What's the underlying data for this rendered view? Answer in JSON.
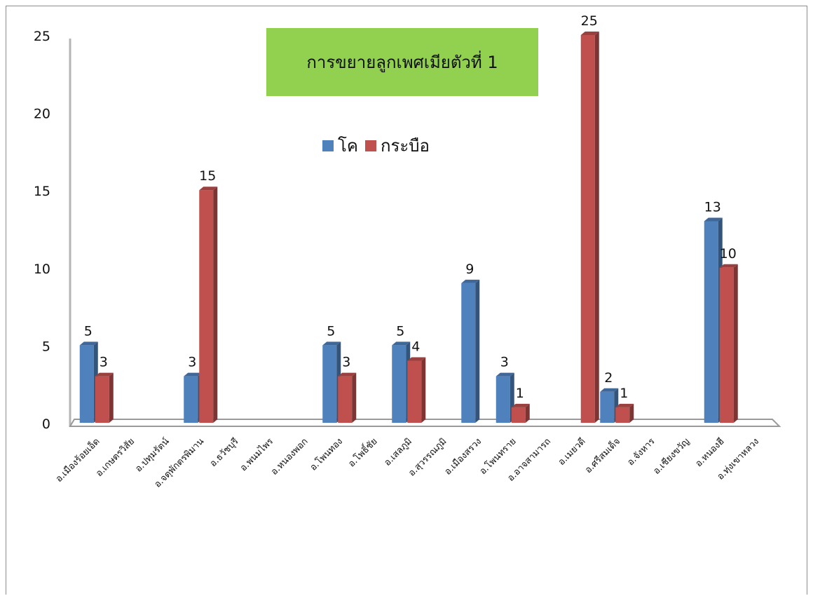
{
  "chart_data": {
    "type": "bar",
    "title": "การขยายลูกเพศเมียตัวที่ 1",
    "categories": [
      "อ.เมืองร้อยเอ็ด",
      "อ.เกษตรวิสัย",
      "อ.ปทุมรัตน์",
      "อ.จตุพักตรพิมาน",
      "อ.ธวัชบุรี",
      "อ.พนมไพร",
      "อ.หนองพอก",
      "อ.โพนทอง",
      "อ.โพธิ์ชัย",
      "อ.เสลภูมิ",
      "อ.สุวรรณภูมิ",
      "อ.เมืองสรวง",
      "อ.โพนทราย",
      "อ.อาจสามารถ",
      "อ.เมยวดี",
      "อ.ศรีสมเด็จ",
      "อ.จังหาร",
      "อ.เชียงขวัญ",
      "อ.หนองฮี",
      "อ.ทุ่งเขาหลวง"
    ],
    "series": [
      {
        "name": "โค",
        "color": "#4f81bd",
        "values": [
          5,
          null,
          null,
          3,
          null,
          null,
          null,
          5,
          null,
          5,
          null,
          9,
          3,
          null,
          null,
          2,
          null,
          null,
          13,
          null
        ]
      },
      {
        "name": "กระบือ",
        "color": "#c0504d",
        "values": [
          3,
          null,
          null,
          15,
          null,
          null,
          null,
          3,
          null,
          4,
          null,
          null,
          1,
          null,
          25,
          1,
          null,
          null,
          10,
          null
        ]
      }
    ],
    "yticks": [
      "0",
      "5",
      "10",
      "15",
      "20",
      "25"
    ],
    "ylim": [
      0,
      25
    ],
    "xlabel": "",
    "ylabel": "",
    "legend_position": "top-center",
    "grid": false
  }
}
